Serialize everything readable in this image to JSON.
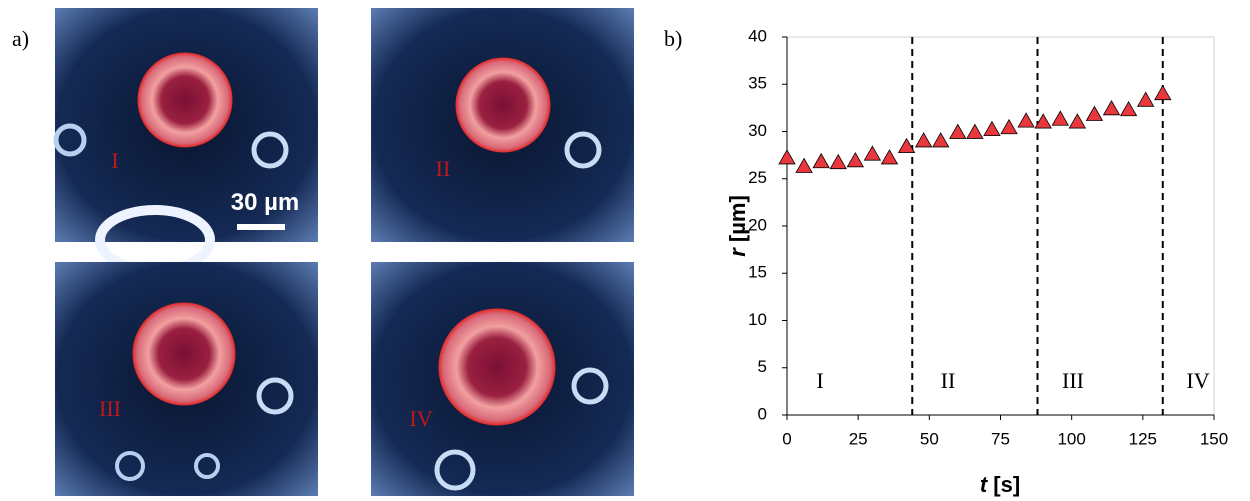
{
  "panels": {
    "a": "a)",
    "b": "b)"
  },
  "images": {
    "labels": [
      "I",
      "II",
      "III",
      "IV"
    ],
    "scale_bar": "30 µm"
  },
  "chart_data": {
    "type": "scatter",
    "x": [
      0,
      6,
      12,
      18,
      24,
      30,
      36,
      42,
      48,
      54,
      60,
      66,
      72,
      78,
      84,
      90,
      96,
      102,
      108,
      114,
      120,
      126,
      132
    ],
    "series": [
      {
        "color": "#e8383d",
        "values": [
          27.2,
          26.3,
          26.8,
          26.7,
          26.9,
          27.6,
          27.2,
          28.4,
          29.0,
          29.0,
          29.9,
          29.9,
          30.2,
          30.4,
          31.1,
          31.0,
          31.3,
          31.0,
          31.8,
          32.4,
          32.3,
          33.3,
          34.0
        ]
      }
    ],
    "xlim": [
      0,
      150
    ],
    "xticks": [
      0,
      25,
      50,
      75,
      100,
      125,
      150
    ],
    "ylim": [
      0,
      40
    ],
    "yticks": [
      0,
      5,
      10,
      15,
      20,
      25,
      30,
      35,
      40
    ],
    "x_label": {
      "symbol": "t",
      "unit": "[s]"
    },
    "y_label": {
      "symbol": "r",
      "unit": "[µm]"
    },
    "phase_boundaries": [
      44,
      88,
      132
    ],
    "phase_labels": [
      "I",
      "II",
      "III",
      "IV"
    ]
  }
}
